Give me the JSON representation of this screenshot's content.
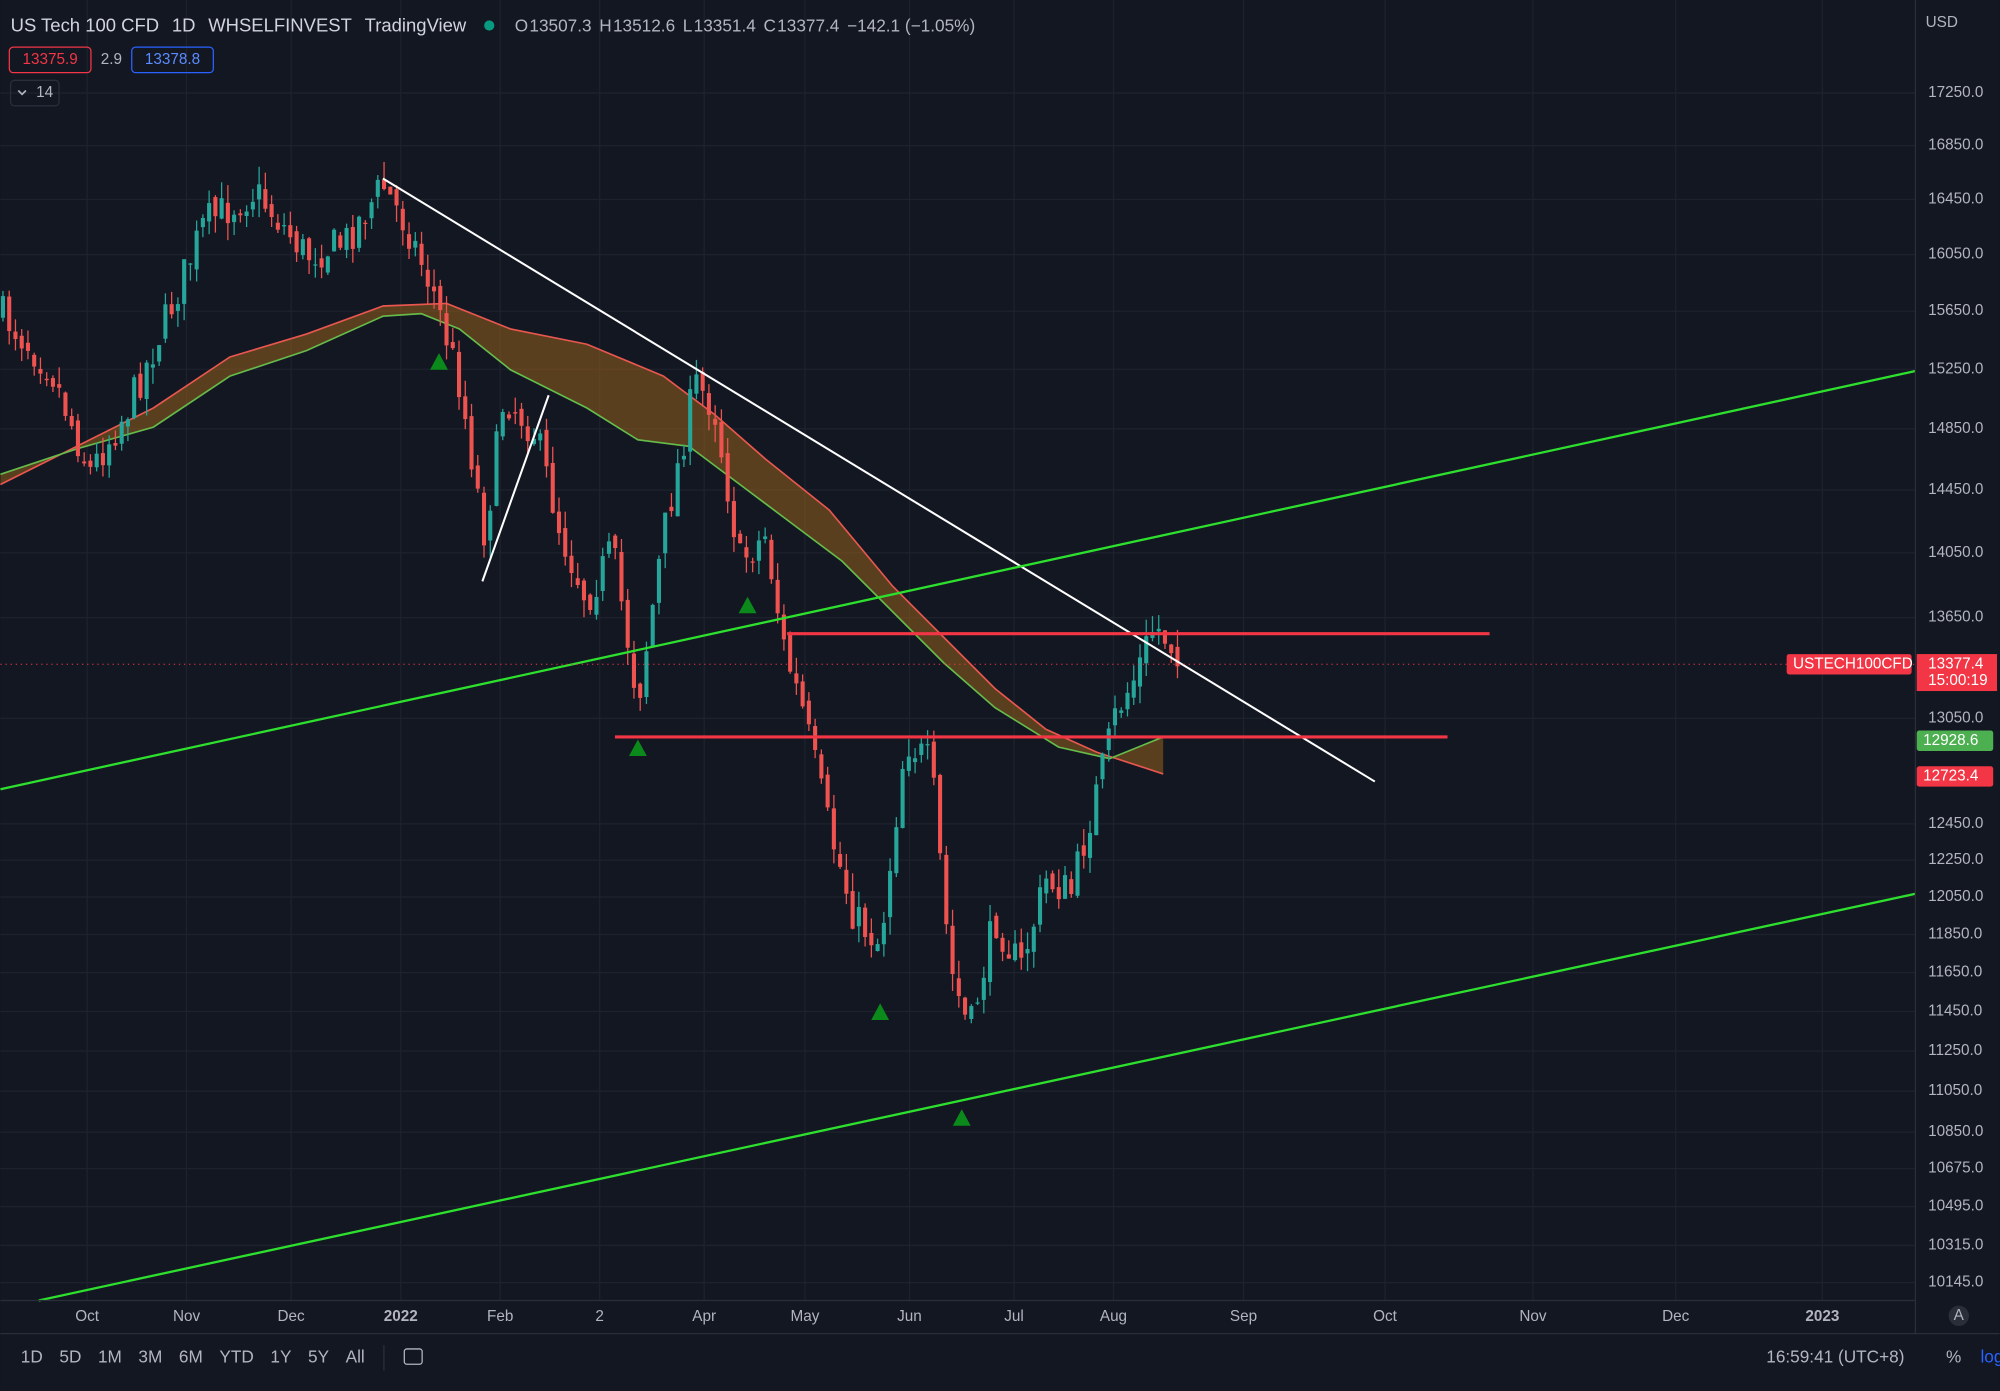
{
  "header": {
    "title": "US Tech 100 CFD",
    "interval": "1D",
    "exchange": "WHSELFINVEST",
    "source": "TradingView",
    "ohlc": [
      {
        "key": "O",
        "value": "13507.3"
      },
      {
        "key": "H",
        "value": "13512.6"
      },
      {
        "key": "L",
        "value": "13351.4"
      },
      {
        "key": "C",
        "value": "13377.4"
      }
    ],
    "change": "−142.1 (−1.05%)",
    "sell": "13375.9",
    "spread": "2.9",
    "buy": "13378.8",
    "indicator": "14"
  },
  "price_axis": {
    "currency": "USD",
    "labels": [
      "17250.0",
      "16850.0",
      "16450.0",
      "16050.0",
      "15650.0",
      "15250.0",
      "14850.0",
      "14450.0",
      "14050.0",
      "13650.0",
      "13050.0",
      "12450.0",
      "12250.0",
      "12050.0",
      "11850.0",
      "11650.0",
      "11450.0",
      "11250.0",
      "11050.0",
      "10850.0",
      "10675.0",
      "10495.0",
      "10315.0",
      "10145.0"
    ],
    "symbol_badge": "USTECH100CFD",
    "last_price": "13377.4",
    "countdown": "15:00:19",
    "ma_green": "12928.6",
    "ma_red": "12723.4",
    "auto": "A"
  },
  "time_axis": [
    "Oct",
    "Nov",
    "Dec",
    "2022",
    "Feb",
    "2",
    "Apr",
    "May",
    "Jun",
    "Jul",
    "Aug",
    "Sep",
    "Oct",
    "Nov",
    "Dec",
    "2023"
  ],
  "toolbar": {
    "ranges": [
      "1D",
      "5D",
      "1M",
      "3M",
      "6M",
      "YTD",
      "1Y",
      "5Y",
      "All"
    ],
    "clock": "16:59:41 (UTC+8)",
    "percent": "%",
    "log": "log"
  }
}
